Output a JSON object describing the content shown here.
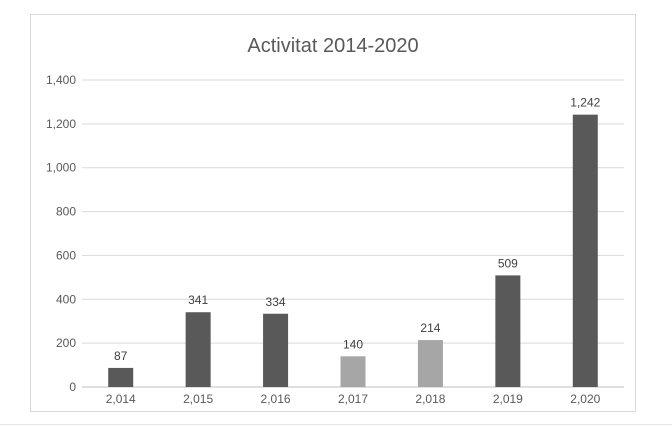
{
  "chart_data": {
    "type": "bar",
    "title": "Activitat 2014-2020",
    "categories": [
      "2,014",
      "2,015",
      "2,016",
      "2,017",
      "2,018",
      "2,019",
      "2,020"
    ],
    "values": [
      87,
      341,
      334,
      140,
      214,
      509,
      1242
    ],
    "data_labels": [
      "87",
      "341",
      "334",
      "140",
      "214",
      "509",
      "1,242"
    ],
    "bar_colors": [
      "#595959",
      "#595959",
      "#595959",
      "#a6a6a6",
      "#a6a6a6",
      "#595959",
      "#595959"
    ],
    "yticks": [
      0,
      200,
      400,
      600,
      800,
      1000,
      1200,
      1400
    ],
    "ytick_labels": [
      "0",
      "200",
      "400",
      "600",
      "800",
      "1,000",
      "1,200",
      "1,400"
    ],
    "ylim": [
      0,
      1400
    ],
    "xlabel": "",
    "ylabel": "",
    "grid": true,
    "legend": false
  }
}
